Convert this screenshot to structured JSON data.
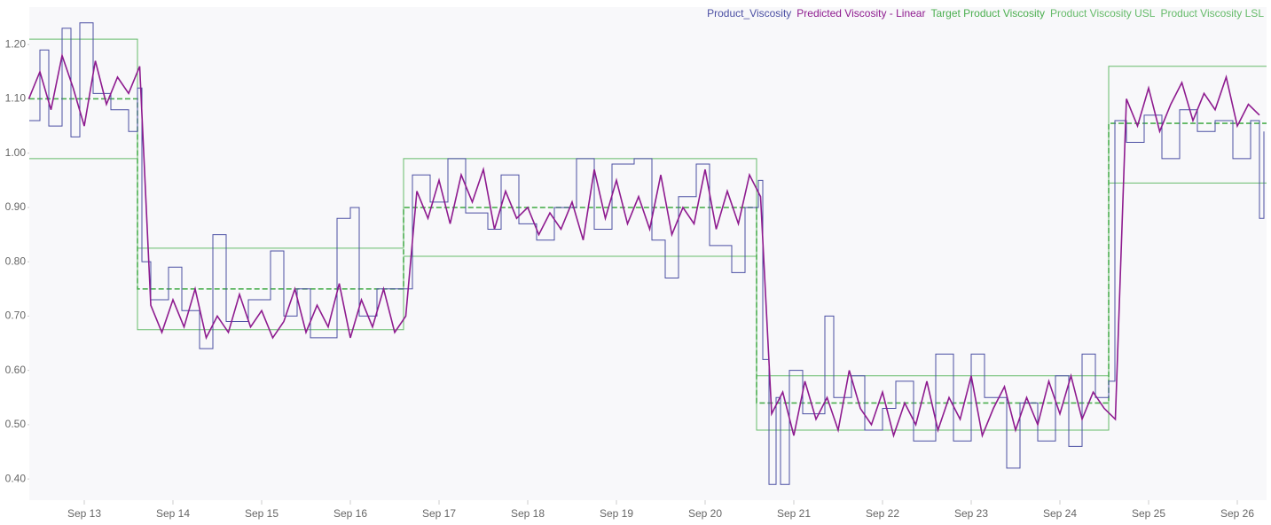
{
  "chart_data": {
    "type": "line",
    "xlim": [
      12.38,
      26.33
    ],
    "ylim": [
      0.361,
      1.269
    ],
    "xticks": [
      {
        "value": 13,
        "label": "Sep 13"
      },
      {
        "value": 14,
        "label": "Sep 14"
      },
      {
        "value": 15,
        "label": "Sep 15"
      },
      {
        "value": 16,
        "label": "Sep 16"
      },
      {
        "value": 17,
        "label": "Sep 17"
      },
      {
        "value": 18,
        "label": "Sep 18"
      },
      {
        "value": 19,
        "label": "Sep 19"
      },
      {
        "value": 20,
        "label": "Sep 20"
      },
      {
        "value": 21,
        "label": "Sep 21"
      },
      {
        "value": 22,
        "label": "Sep 22"
      },
      {
        "value": 23,
        "label": "Sep 23"
      },
      {
        "value": 24,
        "label": "Sep 24"
      },
      {
        "value": 25,
        "label": "Sep 25"
      },
      {
        "value": 26,
        "label": "Sep 26"
      }
    ],
    "yticks": [
      {
        "value": 0.4,
        "label": "0.40"
      },
      {
        "value": 0.5,
        "label": "0.50"
      },
      {
        "value": 0.6,
        "label": "0.60"
      },
      {
        "value": 0.7,
        "label": "0.70"
      },
      {
        "value": 0.8,
        "label": "0.80"
      },
      {
        "value": 0.9,
        "label": "0.90"
      },
      {
        "value": 1.0,
        "label": "1.00"
      },
      {
        "value": 1.1,
        "label": "1.10"
      },
      {
        "value": 1.2,
        "label": "1.20"
      }
    ],
    "legend": "top-right",
    "series": [
      {
        "name": "Product_Viscosity",
        "color": "#4b4fa3",
        "step": true,
        "dashed": false,
        "width": 1,
        "x": [
          12.38,
          12.5,
          12.6,
          12.75,
          12.85,
          12.95,
          13.1,
          13.3,
          13.5,
          13.6,
          13.65,
          13.75,
          13.95,
          14.1,
          14.3,
          14.45,
          14.6,
          14.85,
          15.1,
          15.25,
          15.4,
          15.55,
          15.85,
          16.0,
          16.1,
          16.3,
          16.6,
          16.7,
          16.9,
          17.1,
          17.3,
          17.55,
          17.7,
          17.9,
          18.1,
          18.3,
          18.55,
          18.75,
          18.95,
          19.2,
          19.4,
          19.55,
          19.7,
          19.9,
          20.05,
          20.3,
          20.45,
          20.6,
          20.65,
          20.72,
          20.8,
          20.85,
          20.95,
          21.1,
          21.35,
          21.45,
          21.65,
          21.8,
          22.0,
          22.15,
          22.35,
          22.6,
          22.8,
          23.0,
          23.15,
          23.4,
          23.55,
          23.75,
          23.95,
          24.1,
          24.25,
          24.4,
          24.55,
          24.62,
          24.75,
          24.95,
          25.15,
          25.35,
          25.55,
          25.75,
          25.95,
          26.15,
          26.25,
          26.3
        ],
        "values": [
          1.06,
          1.19,
          1.05,
          1.23,
          1.03,
          1.24,
          1.11,
          1.08,
          1.04,
          1.12,
          0.8,
          0.73,
          0.79,
          0.71,
          0.64,
          0.85,
          0.69,
          0.73,
          0.82,
          0.7,
          0.75,
          0.66,
          0.88,
          0.9,
          0.7,
          0.75,
          0.75,
          0.96,
          0.91,
          0.99,
          0.89,
          0.86,
          0.96,
          0.87,
          0.84,
          0.9,
          0.99,
          0.86,
          0.98,
          0.99,
          0.84,
          0.77,
          0.92,
          0.98,
          0.83,
          0.78,
          0.9,
          0.95,
          0.62,
          0.39,
          0.55,
          0.39,
          0.6,
          0.52,
          0.7,
          0.55,
          0.59,
          0.49,
          0.53,
          0.58,
          0.47,
          0.63,
          0.47,
          0.63,
          0.55,
          0.42,
          0.54,
          0.47,
          0.59,
          0.46,
          0.63,
          0.55,
          0.58,
          1.06,
          1.02,
          1.07,
          0.99,
          1.08,
          1.04,
          1.06,
          0.99,
          1.06,
          0.88,
          1.04
        ]
      },
      {
        "name": "Predicted Viscosity - Linear",
        "color": "#8e1b8f",
        "step": false,
        "dashed": false,
        "width": 1.6,
        "x": [
          12.375,
          12.5,
          12.625,
          12.75,
          12.875,
          13,
          13.125,
          13.25,
          13.375,
          13.5,
          13.625,
          13.75,
          13.875,
          14,
          14.125,
          14.25,
          14.375,
          14.5,
          14.625,
          14.75,
          14.875,
          15,
          15.125,
          15.25,
          15.375,
          15.5,
          15.625,
          15.75,
          15.875,
          16,
          16.125,
          16.25,
          16.375,
          16.5,
          16.625,
          16.75,
          16.875,
          17,
          17.125,
          17.25,
          17.375,
          17.5,
          17.625,
          17.75,
          17.875,
          18,
          18.125,
          18.25,
          18.375,
          18.5,
          18.625,
          18.75,
          18.875,
          19,
          19.125,
          19.25,
          19.375,
          19.5,
          19.625,
          19.75,
          19.875,
          20,
          20.125,
          20.25,
          20.375,
          20.5,
          20.625,
          20.75,
          20.875,
          21,
          21.125,
          21.25,
          21.375,
          21.5,
          21.625,
          21.75,
          21.875,
          22,
          22.125,
          22.25,
          22.375,
          22.5,
          22.625,
          22.75,
          22.875,
          23,
          23.125,
          23.25,
          23.375,
          23.5,
          23.625,
          23.75,
          23.875,
          24,
          24.125,
          24.25,
          24.375,
          24.5,
          24.625,
          24.75,
          24.875,
          25,
          25.125,
          25.25,
          25.375,
          25.5,
          25.625,
          25.75,
          25.875,
          26,
          26.125,
          26.25
        ],
        "values": [
          1.1,
          1.15,
          1.08,
          1.18,
          1.12,
          1.05,
          1.17,
          1.09,
          1.14,
          1.11,
          1.16,
          0.72,
          0.67,
          0.73,
          0.68,
          0.75,
          0.66,
          0.7,
          0.67,
          0.74,
          0.68,
          0.71,
          0.66,
          0.69,
          0.75,
          0.67,
          0.72,
          0.68,
          0.76,
          0.66,
          0.73,
          0.68,
          0.75,
          0.67,
          0.7,
          0.93,
          0.88,
          0.95,
          0.87,
          0.96,
          0.91,
          0.97,
          0.86,
          0.93,
          0.88,
          0.9,
          0.85,
          0.89,
          0.86,
          0.91,
          0.84,
          0.97,
          0.88,
          0.95,
          0.87,
          0.92,
          0.86,
          0.96,
          0.85,
          0.9,
          0.87,
          0.97,
          0.86,
          0.93,
          0.87,
          0.96,
          0.92,
          0.52,
          0.56,
          0.48,
          0.58,
          0.51,
          0.55,
          0.49,
          0.6,
          0.53,
          0.5,
          0.56,
          0.48,
          0.54,
          0.5,
          0.58,
          0.49,
          0.55,
          0.51,
          0.59,
          0.48,
          0.53,
          0.57,
          0.49,
          0.55,
          0.5,
          0.58,
          0.52,
          0.59,
          0.51,
          0.56,
          0.53,
          0.51,
          1.1,
          1.05,
          1.12,
          1.04,
          1.09,
          1.13,
          1.06,
          1.11,
          1.08,
          1.14,
          1.05,
          1.09,
          1.07
        ]
      },
      {
        "name": "Target Product Viscosity",
        "color": "#4caf50",
        "step": true,
        "dashed": true,
        "width": 1.6,
        "x": [
          12.38,
          13.6,
          16.6,
          20.58,
          24.55,
          26.33
        ],
        "values": [
          1.1,
          0.75,
          0.9,
          0.54,
          1.055,
          1.055
        ]
      },
      {
        "name": "Product Viscosity USL",
        "color": "#66bb6a",
        "step": true,
        "dashed": false,
        "width": 1,
        "x": [
          12.38,
          13.6,
          16.6,
          20.58,
          24.55,
          26.33
        ],
        "values": [
          1.21,
          0.825,
          0.99,
          0.59,
          1.16,
          1.16
        ]
      },
      {
        "name": "Product Viscosity LSL",
        "color": "#66bb6a",
        "step": true,
        "dashed": false,
        "width": 1,
        "x": [
          12.38,
          13.6,
          16.6,
          20.58,
          24.55,
          26.33
        ],
        "values": [
          0.99,
          0.675,
          0.81,
          0.49,
          0.945,
          0.945
        ]
      }
    ]
  }
}
